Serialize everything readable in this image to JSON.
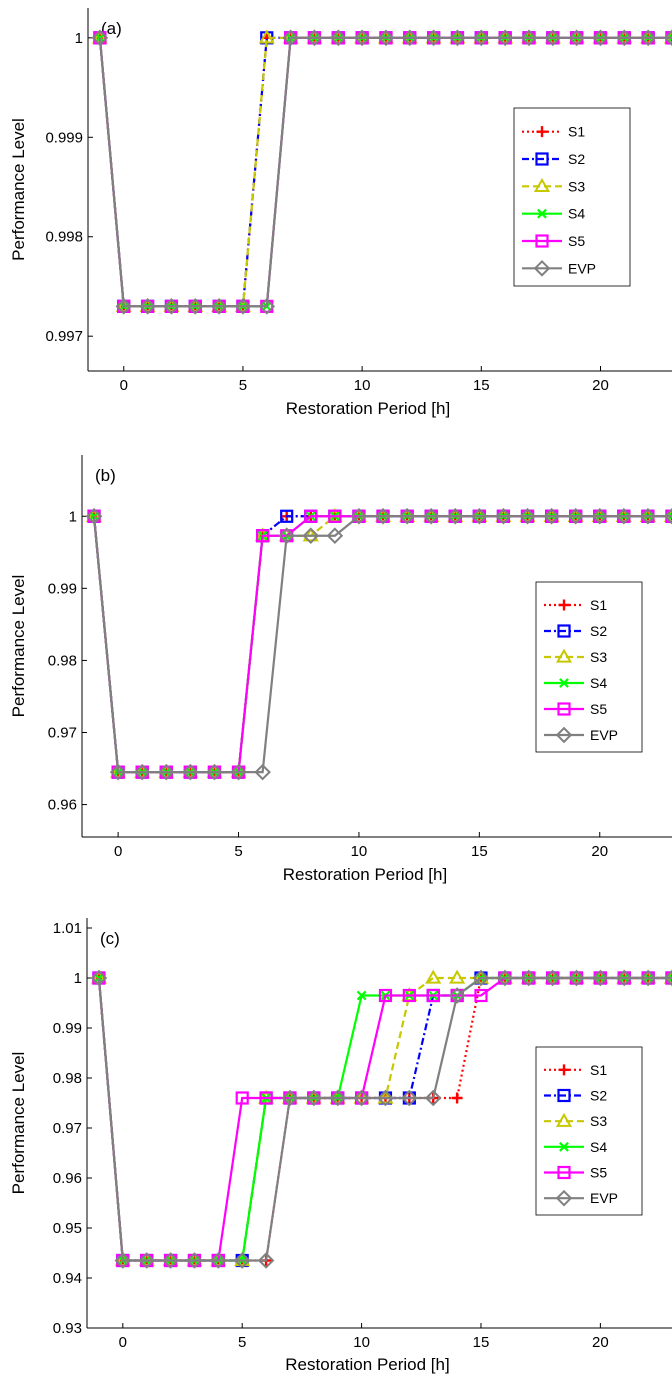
{
  "chart_data": [
    {
      "type": "line",
      "panel_label": "(a)",
      "xlabel": "Restoration Period [h]",
      "ylabel": "Performance Level",
      "xlim": [
        -1.5,
        23
      ],
      "ylim": [
        0.99665,
        1.0003
      ],
      "xticks": [
        0,
        5,
        10,
        15,
        20
      ],
      "yticks": [
        0.997,
        0.998,
        0.999,
        1
      ],
      "ytick_labels": [
        "0.997",
        "0.998",
        "0.999",
        "1"
      ],
      "legend": "right",
      "x": [
        -1,
        0,
        1,
        2,
        3,
        4,
        5,
        6,
        7,
        8,
        9,
        10,
        11,
        12,
        13,
        14,
        15,
        16,
        17,
        18,
        19,
        20,
        21,
        22,
        23
      ],
      "series": [
        {
          "name": "S1",
          "color": "#ff0000",
          "dash": "dotted",
          "marker": "plus",
          "values": [
            1,
            0.9973,
            0.9973,
            0.9973,
            0.9973,
            0.9973,
            0.9973,
            1,
            1,
            1,
            1,
            1,
            1,
            1,
            1,
            1,
            1,
            1,
            1,
            1,
            1,
            1,
            1,
            1,
            1
          ]
        },
        {
          "name": "S2",
          "color": "#0000ff",
          "dash": "dashdot",
          "marker": "square",
          "values": [
            1,
            0.9973,
            0.9973,
            0.9973,
            0.9973,
            0.9973,
            0.9973,
            1,
            1,
            1,
            1,
            1,
            1,
            1,
            1,
            1,
            1,
            1,
            1,
            1,
            1,
            1,
            1,
            1,
            1
          ]
        },
        {
          "name": "S3",
          "color": "#c8c800",
          "dash": "dashed",
          "marker": "triangle",
          "values": [
            1,
            0.9973,
            0.9973,
            0.9973,
            0.9973,
            0.9973,
            0.9973,
            1,
            1,
            1,
            1,
            1,
            1,
            1,
            1,
            1,
            1,
            1,
            1,
            1,
            1,
            1,
            1,
            1,
            1
          ]
        },
        {
          "name": "S4",
          "color": "#00ff00",
          "dash": "solid",
          "marker": "x",
          "values": [
            1,
            0.9973,
            0.9973,
            0.9973,
            0.9973,
            0.9973,
            0.9973,
            0.9973,
            1,
            1,
            1,
            1,
            1,
            1,
            1,
            1,
            1,
            1,
            1,
            1,
            1,
            1,
            1,
            1,
            1
          ]
        },
        {
          "name": "S5",
          "color": "#ff00ff",
          "dash": "solid",
          "marker": "square",
          "values": [
            1,
            0.9973,
            0.9973,
            0.9973,
            0.9973,
            0.9973,
            0.9973,
            0.9973,
            1,
            1,
            1,
            1,
            1,
            1,
            1,
            1,
            1,
            1,
            1,
            1,
            1,
            1,
            1,
            1,
            1
          ]
        },
        {
          "name": "EVP",
          "color": "#808080",
          "dash": "solid",
          "marker": "diamond",
          "values": [
            1,
            0.9973,
            0.9973,
            0.9973,
            0.9973,
            0.9973,
            0.9973,
            0.9973,
            1,
            1,
            1,
            1,
            1,
            1,
            1,
            1,
            1,
            1,
            1,
            1,
            1,
            1,
            1,
            1,
            1
          ]
        }
      ]
    },
    {
      "type": "line",
      "panel_label": "(b)",
      "xlabel": "Restoration Period [h]",
      "ylabel": "Performance Level",
      "xlim": [
        -1.5,
        23
      ],
      "ylim": [
        0.9555,
        1.0085
      ],
      "xticks": [
        0,
        5,
        10,
        15,
        20
      ],
      "yticks": [
        0.96,
        0.97,
        0.98,
        0.99,
        1
      ],
      "ytick_labels": [
        "0.96",
        "0.97",
        "0.98",
        "0.99",
        "1"
      ],
      "legend": "right",
      "x": [
        -1,
        0,
        1,
        2,
        3,
        4,
        5,
        6,
        7,
        8,
        9,
        10,
        11,
        12,
        13,
        14,
        15,
        16,
        17,
        18,
        19,
        20,
        21,
        22,
        23
      ],
      "series": [
        {
          "name": "S1",
          "color": "#ff0000",
          "dash": "dotted",
          "marker": "plus",
          "values": [
            1,
            0.9645,
            0.9645,
            0.9645,
            0.9645,
            0.9645,
            0.9645,
            0.9973,
            1,
            1,
            1,
            1,
            1,
            1,
            1,
            1,
            1,
            1,
            1,
            1,
            1,
            1,
            1,
            1,
            1
          ]
        },
        {
          "name": "S2",
          "color": "#0000ff",
          "dash": "dashdot",
          "marker": "square",
          "values": [
            1,
            0.9645,
            0.9645,
            0.9645,
            0.9645,
            0.9645,
            0.9645,
            0.9973,
            1,
            1,
            1,
            1,
            1,
            1,
            1,
            1,
            1,
            1,
            1,
            1,
            1,
            1,
            1,
            1,
            1
          ]
        },
        {
          "name": "S3",
          "color": "#c8c800",
          "dash": "dashed",
          "marker": "triangle",
          "values": [
            1,
            0.9645,
            0.9645,
            0.9645,
            0.9645,
            0.9645,
            0.9645,
            0.9973,
            0.9973,
            0.9973,
            1,
            1,
            1,
            1,
            1,
            1,
            1,
            1,
            1,
            1,
            1,
            1,
            1,
            1,
            1
          ]
        },
        {
          "name": "S4",
          "color": "#00ff00",
          "dash": "solid",
          "marker": "x",
          "values": [
            1,
            0.9645,
            0.9645,
            0.9645,
            0.9645,
            0.9645,
            0.9645,
            0.9973,
            0.9973,
            1,
            1,
            1,
            1,
            1,
            1,
            1,
            1,
            1,
            1,
            1,
            1,
            1,
            1,
            1,
            1
          ]
        },
        {
          "name": "S5",
          "color": "#ff00ff",
          "dash": "solid",
          "marker": "square",
          "values": [
            1,
            0.9645,
            0.9645,
            0.9645,
            0.9645,
            0.9645,
            0.9645,
            0.9973,
            0.9973,
            1,
            1,
            1,
            1,
            1,
            1,
            1,
            1,
            1,
            1,
            1,
            1,
            1,
            1,
            1,
            1
          ]
        },
        {
          "name": "EVP",
          "color": "#808080",
          "dash": "solid",
          "marker": "diamond",
          "values": [
            1,
            0.9645,
            0.9645,
            0.9645,
            0.9645,
            0.9645,
            0.9645,
            0.9645,
            0.9973,
            0.9973,
            0.9973,
            1,
            1,
            1,
            1,
            1,
            1,
            1,
            1,
            1,
            1,
            1,
            1,
            1,
            1
          ]
        }
      ]
    },
    {
      "type": "line",
      "panel_label": "(c)",
      "xlabel": "Restoration Period [h]",
      "ylabel": "Performance Level",
      "xlim": [
        -1.5,
        23
      ],
      "ylim": [
        0.93,
        1.012
      ],
      "xticks": [
        0,
        5,
        10,
        15,
        20
      ],
      "yticks": [
        0.93,
        0.94,
        0.95,
        0.96,
        0.97,
        0.98,
        0.99,
        1,
        1.01
      ],
      "ytick_labels": [
        "0.93",
        "0.94",
        "0.95",
        "0.96",
        "0.97",
        "0.98",
        "0.99",
        "1",
        "1.01"
      ],
      "legend": "right",
      "x": [
        -1,
        0,
        1,
        2,
        3,
        4,
        5,
        6,
        7,
        8,
        9,
        10,
        11,
        12,
        13,
        14,
        15,
        16,
        17,
        18,
        19,
        20,
        21,
        22,
        23
      ],
      "series": [
        {
          "name": "S1",
          "color": "#ff0000",
          "dash": "dotted",
          "marker": "plus",
          "values": [
            1,
            0.9435,
            0.9435,
            0.9435,
            0.9435,
            0.9435,
            0.9435,
            0.9435,
            0.976,
            0.976,
            0.976,
            0.976,
            0.976,
            0.976,
            0.976,
            0.976,
            1,
            1,
            1,
            1,
            1,
            1,
            1,
            1,
            1
          ]
        },
        {
          "name": "S2",
          "color": "#0000ff",
          "dash": "dashdot",
          "marker": "square",
          "values": [
            1,
            0.9435,
            0.9435,
            0.9435,
            0.9435,
            0.9435,
            0.9435,
            0.976,
            0.976,
            0.976,
            0.976,
            0.976,
            0.976,
            0.976,
            0.9965,
            0.9965,
            1,
            1,
            1,
            1,
            1,
            1,
            1,
            1,
            1
          ]
        },
        {
          "name": "S3",
          "color": "#c8c800",
          "dash": "dashed",
          "marker": "triangle",
          "values": [
            1,
            0.9435,
            0.9435,
            0.9435,
            0.9435,
            0.9435,
            0.9435,
            0.976,
            0.976,
            0.976,
            0.976,
            0.976,
            0.976,
            0.9965,
            1,
            1,
            1,
            1,
            1,
            1,
            1,
            1,
            1,
            1,
            1
          ]
        },
        {
          "name": "S4",
          "color": "#00ff00",
          "dash": "solid",
          "marker": "x",
          "values": [
            1,
            0.9435,
            0.9435,
            0.9435,
            0.9435,
            0.9435,
            0.9435,
            0.976,
            0.976,
            0.976,
            0.976,
            0.9965,
            0.9965,
            0.9965,
            0.9965,
            0.9965,
            1,
            1,
            1,
            1,
            1,
            1,
            1,
            1,
            1
          ]
        },
        {
          "name": "S5",
          "color": "#ff00ff",
          "dash": "solid",
          "marker": "square",
          "values": [
            1,
            0.9435,
            0.9435,
            0.9435,
            0.9435,
            0.9435,
            0.976,
            0.976,
            0.976,
            0.976,
            0.976,
            0.976,
            0.9965,
            0.9965,
            0.9965,
            0.9965,
            0.9965,
            1,
            1,
            1,
            1,
            1,
            1,
            1,
            1
          ]
        },
        {
          "name": "EVP",
          "color": "#808080",
          "dash": "solid",
          "marker": "diamond",
          "values": [
            1,
            0.9435,
            0.9435,
            0.9435,
            0.9435,
            0.9435,
            0.9435,
            0.9435,
            0.976,
            0.976,
            0.976,
            0.976,
            0.976,
            0.976,
            0.976,
            0.9965,
            1,
            1,
            1,
            1,
            1,
            1,
            1,
            1,
            1
          ]
        }
      ]
    }
  ]
}
